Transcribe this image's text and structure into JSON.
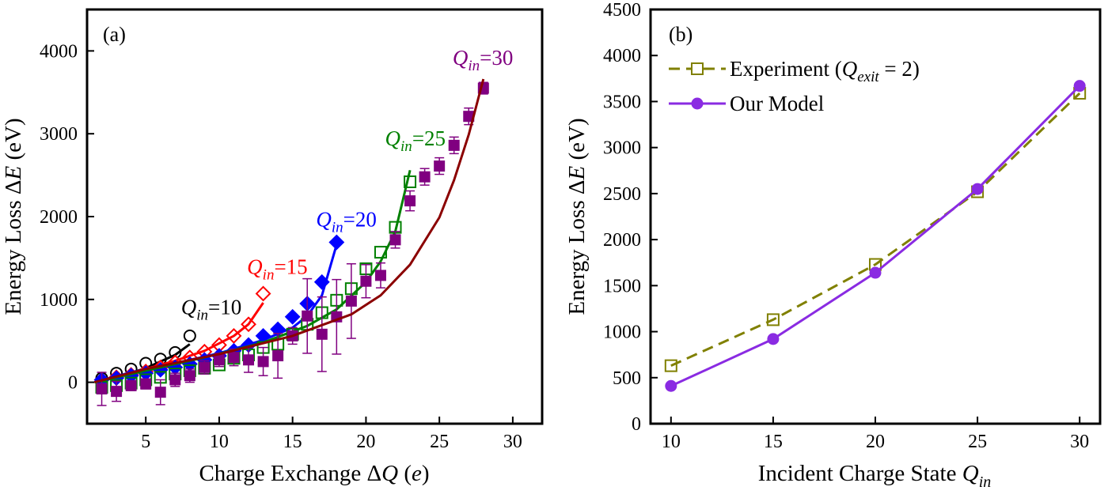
{
  "chart_data": [
    {
      "panel": "(a)",
      "type": "scatter",
      "xlabel": "Charge Exchange ΔQ (e)",
      "ylabel": "Energy Loss ΔE (eV)",
      "xlim": [
        1,
        32
      ],
      "ylim": [
        -500,
        4500
      ],
      "xticks": [
        5,
        10,
        15,
        20,
        25,
        30
      ],
      "yticks": [
        0,
        1000,
        2000,
        3000,
        4000
      ],
      "grid": false,
      "labels": [
        {
          "text": "Q",
          "sub": "in",
          "rest": "=10",
          "color": "#000000",
          "x": 7.4,
          "y": 820
        },
        {
          "text": "Q",
          "sub": "in",
          "rest": "=15",
          "color": "#ff0000",
          "x": 11.9,
          "y": 1310
        },
        {
          "text": "Q",
          "sub": "in",
          "rest": "=20",
          "color": "#0000ff",
          "x": 16.6,
          "y": 1880
        },
        {
          "text": "Q",
          "sub": "in",
          "rest": "=25",
          "color": "#008000",
          "x": 21.3,
          "y": 2860
        },
        {
          "text": "Q",
          "sub": "in",
          "rest": "=30",
          "color": "#800080",
          "x": 25.9,
          "y": 3830
        }
      ],
      "series": [
        {
          "name": "Q_in=10 data",
          "color": "#000000",
          "marker": "circle-open",
          "x": [
            2,
            3,
            4,
            5,
            6,
            7,
            8
          ],
          "y": [
            50,
            110,
            160,
            230,
            280,
            360,
            560
          ]
        },
        {
          "name": "Q_in=10 model",
          "color": "#000000",
          "line": "solid",
          "x": [
            1.5,
            3,
            5,
            7,
            8
          ],
          "y": [
            0,
            60,
            170,
            330,
            460
          ]
        },
        {
          "name": "Q_in=15 data",
          "color": "#ff0000",
          "marker": "diamond-open",
          "x": [
            2,
            3,
            4,
            5,
            6,
            7,
            8,
            9,
            10,
            11,
            12,
            13
          ],
          "y": [
            30,
            60,
            90,
            130,
            180,
            240,
            300,
            370,
            450,
            560,
            700,
            1070
          ]
        },
        {
          "name": "Q_in=15 model",
          "color": "#ff0000",
          "line": "solid",
          "x": [
            1.5,
            3,
            5,
            7,
            9,
            11,
            12,
            13
          ],
          "y": [
            0,
            70,
            160,
            260,
            380,
            560,
            700,
            960
          ]
        },
        {
          "name": "Q_in=20 data",
          "color": "#0000ff",
          "marker": "diamond-filled",
          "x": [
            2,
            3,
            4,
            5,
            6,
            7,
            8,
            9,
            10,
            11,
            12,
            13,
            14,
            15,
            16,
            17,
            18
          ],
          "y": [
            30,
            50,
            80,
            110,
            150,
            180,
            220,
            270,
            320,
            380,
            450,
            560,
            640,
            790,
            950,
            1210,
            1690
          ]
        },
        {
          "name": "Q_in=20 model",
          "color": "#0000ff",
          "line": "solid",
          "x": [
            1.5,
            4,
            7,
            10,
            13,
            15,
            16,
            17,
            18
          ],
          "y": [
            0,
            120,
            230,
            350,
            510,
            660,
            800,
            1050,
            1660
          ]
        },
        {
          "name": "Q_in=25 data",
          "color": "#008000",
          "marker": "square-open",
          "x": [
            2,
            3,
            4,
            5,
            6,
            7,
            8,
            9,
            10,
            11,
            12,
            13,
            14,
            15,
            16,
            17,
            18,
            19,
            20,
            21,
            22,
            23
          ],
          "y": [
            -60,
            -40,
            -10,
            30,
            60,
            100,
            140,
            170,
            210,
            290,
            330,
            420,
            460,
            580,
            700,
            840,
            990,
            1130,
            1370,
            1570,
            1870,
            2420
          ]
        },
        {
          "name": "Q_in=25 model",
          "color": "#008000",
          "line": "solid",
          "x": [
            1.5,
            5,
            9,
            13,
            16,
            18,
            20,
            21,
            22,
            23
          ],
          "y": [
            0,
            140,
            300,
            480,
            680,
            880,
            1210,
            1460,
            1820,
            2560
          ]
        },
        {
          "name": "Q_in=30 data",
          "color": "#800080",
          "marker": "square-filled",
          "x": [
            2,
            3,
            4,
            5,
            6,
            7,
            8,
            9,
            10,
            11,
            12,
            13,
            14,
            15,
            16,
            17,
            18,
            19,
            20,
            21,
            22,
            23,
            24,
            25,
            26,
            27,
            28
          ],
          "y": [
            -80,
            -110,
            -40,
            -20,
            -120,
            30,
            80,
            180,
            270,
            300,
            270,
            250,
            320,
            560,
            800,
            580,
            790,
            980,
            1220,
            1290,
            1720,
            2190,
            2480,
            2610,
            2860,
            3210,
            3550
          ],
          "err": [
            200,
            120,
            60,
            60,
            150,
            80,
            80,
            80,
            80,
            100,
            150,
            170,
            270,
            100,
            450,
            450,
            450,
            450,
            200,
            150,
            100,
            120,
            100,
            100,
            100,
            100,
            70
          ]
        },
        {
          "name": "Q_in=30 model",
          "color": "#8b0000",
          "line": "solid",
          "x": [
            1.5,
            5,
            10,
            15,
            19,
            21,
            23,
            25,
            26,
            27,
            28
          ],
          "y": [
            0,
            160,
            340,
            560,
            820,
            1050,
            1420,
            1990,
            2440,
            2990,
            3660
          ]
        }
      ]
    },
    {
      "panel": "(b)",
      "type": "line",
      "xlabel": "Incident Charge State Q_in",
      "ylabel": "Energy Loss ΔE (eV)",
      "xlim": [
        9,
        31
      ],
      "ylim": [
        0,
        4500
      ],
      "xticks": [
        10,
        15,
        20,
        25,
        30
      ],
      "yticks": [
        0,
        500,
        1000,
        1500,
        2000,
        2500,
        3000,
        3500,
        4000,
        4500
      ],
      "grid": false,
      "legend_position": "top-left",
      "series": [
        {
          "name": "Experiment (Q_exit = 2)",
          "color": "#808000",
          "line": "dashed",
          "marker": "square-open",
          "x": [
            10,
            15,
            20,
            25,
            30
          ],
          "y": [
            630,
            1130,
            1730,
            2520,
            3590
          ]
        },
        {
          "name": "Our Model",
          "color": "#8a2be2",
          "line": "solid",
          "marker": "circle-filled",
          "x": [
            10,
            15,
            20,
            25,
            30
          ],
          "y": [
            410,
            920,
            1640,
            2550,
            3670
          ]
        }
      ]
    }
  ],
  "legend_b": {
    "exp_prefix": "Experiment (",
    "exp_q": "Q",
    "exp_sub": "exit",
    "exp_suffix": " = 2)",
    "model": "Our Model"
  },
  "axis_text": {
    "a_panel": "(a)",
    "b_panel": "(b)",
    "a_xlabel_main": "Charge Exchange Δ",
    "a_xlabel_q": "Q",
    "a_xlabel_unit_open": " (",
    "a_xlabel_unit": "e",
    "a_xlabel_unit_close": ")",
    "ylabel_main": "Energy Loss Δ",
    "ylabel_e": "E",
    "ylabel_unit": " (eV)",
    "b_xlabel_main": "Incident Charge State ",
    "b_xlabel_q": "Q",
    "b_xlabel_sub": "in"
  }
}
